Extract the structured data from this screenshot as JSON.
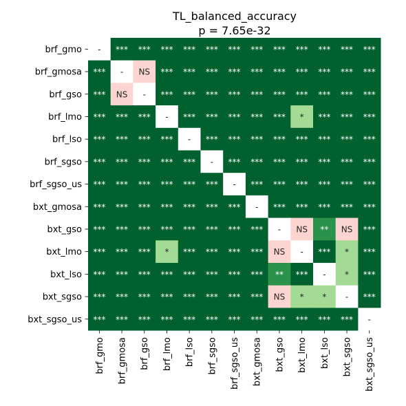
{
  "chart_data": {
    "type": "heatmap",
    "title": "TL_balanced_accuracy",
    "subtitle": "p = 7.65e-32",
    "labels": [
      "brf_gmo",
      "brf_gmosa",
      "brf_gso",
      "brf_lmo",
      "brf_lso",
      "brf_sgso",
      "brf_sgso_us",
      "bxt_gmosa",
      "bxt_gso",
      "bxt_lmo",
      "bxt_lso",
      "bxt_sgso",
      "bxt_sgso_us"
    ],
    "cells": [
      [
        "-",
        "***",
        "***",
        "***",
        "***",
        "***",
        "***",
        "***",
        "***",
        "***",
        "***",
        "***",
        "***"
      ],
      [
        "***",
        "-",
        "NS",
        "***",
        "***",
        "***",
        "***",
        "***",
        "***",
        "***",
        "***",
        "***",
        "***"
      ],
      [
        "***",
        "NS",
        "-",
        "***",
        "***",
        "***",
        "***",
        "***",
        "***",
        "***",
        "***",
        "***",
        "***"
      ],
      [
        "***",
        "***",
        "***",
        "-",
        "***",
        "***",
        "***",
        "***",
        "***",
        "*",
        "***",
        "***",
        "***"
      ],
      [
        "***",
        "***",
        "***",
        "***",
        "-",
        "***",
        "***",
        "***",
        "***",
        "***",
        "***",
        "***",
        "***"
      ],
      [
        "***",
        "***",
        "***",
        "***",
        "***",
        "-",
        "***",
        "***",
        "***",
        "***",
        "***",
        "***",
        "***"
      ],
      [
        "***",
        "***",
        "***",
        "***",
        "***",
        "***",
        "-",
        "***",
        "***",
        "***",
        "***",
        "***",
        "***"
      ],
      [
        "***",
        "***",
        "***",
        "***",
        "***",
        "***",
        "***",
        "-",
        "***",
        "***",
        "***",
        "***",
        "***"
      ],
      [
        "***",
        "***",
        "***",
        "***",
        "***",
        "***",
        "***",
        "***",
        "-",
        "NS",
        "**",
        "NS",
        "***"
      ],
      [
        "***",
        "***",
        "***",
        "*",
        "***",
        "***",
        "***",
        "***",
        "NS",
        "-",
        "***",
        "*",
        "***"
      ],
      [
        "***",
        "***",
        "***",
        "***",
        "***",
        "***",
        "***",
        "***",
        "**",
        "***",
        "-",
        "*",
        "***"
      ],
      [
        "***",
        "***",
        "***",
        "***",
        "***",
        "***",
        "***",
        "***",
        "NS",
        "*",
        "*",
        "-",
        "***"
      ],
      [
        "***",
        "***",
        "***",
        "***",
        "***",
        "***",
        "***",
        "***",
        "***",
        "***",
        "***",
        "***",
        "-"
      ]
    ],
    "colors": {
      "***": "#00612e",
      "**": "#2a924a",
      "*": "#a3da94",
      "NS": "#fcd4d0",
      "-": "#ffffff"
    },
    "text_colors": {
      "***": "#ffffff",
      "**": "#ffffff",
      "*": "#262626",
      "NS": "#262626",
      "-": "#262626"
    }
  }
}
